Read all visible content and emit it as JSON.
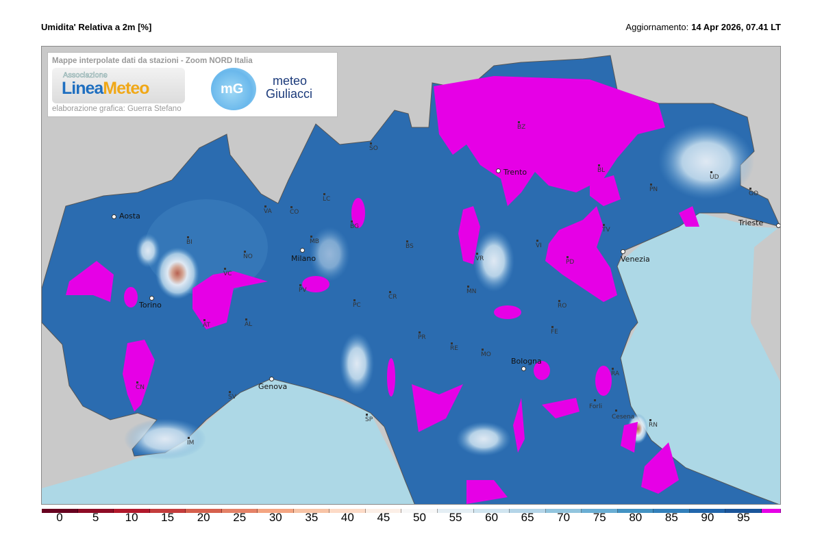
{
  "header": {
    "title": "Umidita' Relativa a 2m [%]",
    "update_label": "Aggiornamento:",
    "update_value": "14 Apr 2026, 07.41 LT"
  },
  "infobox": {
    "heading": "Mappe interpolate dati da stazioni - Zoom NORD Italia",
    "logo1_small": "Associazione",
    "logo1_a": "Linea",
    "logo1_b": "Meteo",
    "logo2_mark": "mG",
    "logo2_line1": "meteo",
    "logo2_line2": "Giuliacci",
    "credit": "elaborazione grafica: Guerra Stefano"
  },
  "map": {
    "colors": {
      "land_outside": "#c9c9c9",
      "sea": "#add8e6",
      "humidity_base": "#2b6cb0",
      "above_95": "#e600e6"
    },
    "cities": [
      "Aosta",
      "Torino",
      "Milano",
      "Genova",
      "Trento",
      "Venezia",
      "Trieste",
      "Bologna",
      "Forli",
      "Cesena"
    ],
    "provinces": [
      "BZ",
      "SO",
      "LC",
      "CO",
      "VA",
      "BI",
      "NO",
      "VC",
      "MB",
      "BG",
      "BS",
      "PV",
      "CR",
      "PC",
      "AT",
      "AL",
      "CN",
      "SV",
      "IM",
      "SP",
      "PR",
      "RE",
      "MO",
      "FE",
      "RA",
      "RN",
      "BL",
      "TV",
      "PN",
      "UD",
      "GO",
      "VR",
      "VI",
      "PD",
      "MN",
      "RO"
    ]
  },
  "legend": {
    "ticks": [
      "0",
      "5",
      "10",
      "15",
      "20",
      "25",
      "30",
      "35",
      "40",
      "45",
      "50",
      "55",
      "60",
      "65",
      "70",
      "75",
      "80",
      "85",
      "90",
      "95"
    ],
    "colors": [
      "#67001f",
      "#8e0c25",
      "#b2182b",
      "#c43c3c",
      "#d6604d",
      "#e58267",
      "#f4a582",
      "#f8c4a6",
      "#fddbc7",
      "#fcefe7",
      "#f7f7f7",
      "#e4eef4",
      "#d1e5f0",
      "#b4d5e8",
      "#92c5de",
      "#6aaed4",
      "#4393c3",
      "#3280bb",
      "#2166ac",
      "#1a559a",
      "#e600e6"
    ]
  }
}
